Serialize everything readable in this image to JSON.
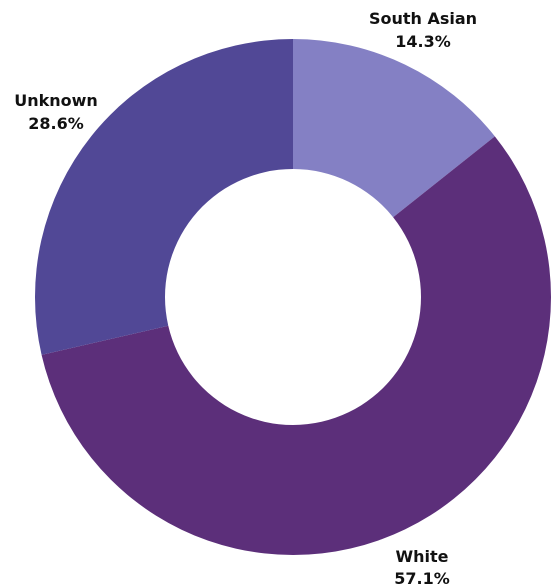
{
  "chart_data": {
    "type": "pie",
    "donut": true,
    "slices": [
      {
        "label": "South Asian",
        "pct_text": "14.3%",
        "value": 14.3,
        "color": "#8480c4"
      },
      {
        "label": "White",
        "pct_text": "57.1%",
        "value": 57.1,
        "color": "#5c2f7a"
      },
      {
        "label": "Unknown",
        "pct_text": "28.6%",
        "value": 28.6,
        "color": "#514896"
      }
    ],
    "start": "top",
    "direction": "clockwise",
    "legend": "none"
  }
}
